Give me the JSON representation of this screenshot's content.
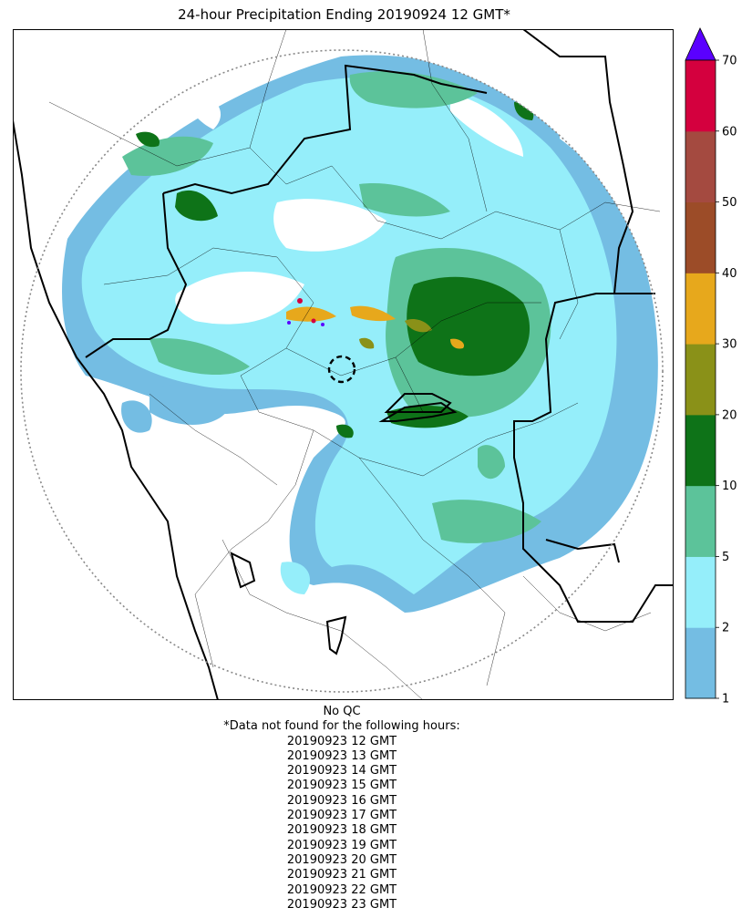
{
  "title": "24-hour Precipitation Ending 20190924 12 GMT*",
  "colorbar": {
    "ticks": [
      "1",
      "2",
      "5",
      "10",
      "20",
      "30",
      "40",
      "50",
      "60",
      "70"
    ],
    "colors": [
      "#74bde3",
      "#95eefa",
      "#5cc39a",
      "#0e7318",
      "#8a9118",
      "#e7a81c",
      "#9c4c28",
      "#a44a40",
      "#d4003e"
    ],
    "extend_color": "#5a00ff"
  },
  "map": {
    "range_ring_color": "#888888",
    "border_color": "#000000"
  },
  "notes": {
    "qc": "No QC",
    "missing_header": "*Data not found for the following hours:",
    "missing_hours": [
      "20190923 12 GMT",
      "20190923 13 GMT",
      "20190923 14 GMT",
      "20190923 15 GMT",
      "20190923 16 GMT",
      "20190923 17 GMT",
      "20190923 18 GMT",
      "20190923 19 GMT",
      "20190923 20 GMT",
      "20190923 21 GMT",
      "20190923 22 GMT",
      "20190923 23 GMT"
    ]
  }
}
